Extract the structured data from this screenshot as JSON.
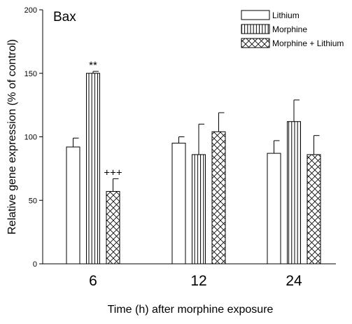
{
  "chart_data": {
    "type": "bar",
    "title": "Bax",
    "xlabel": "Time (h) after morphine exposure",
    "ylabel": "Relative gene expression (% of control)",
    "ylim": [
      0,
      200
    ],
    "yticks": [
      0,
      50,
      100,
      150,
      200
    ],
    "categories": [
      "6",
      "12",
      "24"
    ],
    "legend_position": "top-right",
    "series": [
      {
        "name": "Lithium",
        "pattern": "empty",
        "values": [
          92,
          95,
          87
        ],
        "errors": [
          7,
          5,
          10
        ]
      },
      {
        "name": "Morphine",
        "pattern": "vertical-lines",
        "values": [
          150,
          86,
          112
        ],
        "errors": [
          1.5,
          24,
          17
        ]
      },
      {
        "name": "Morphine + Lithium",
        "pattern": "cross-hatch",
        "values": [
          57,
          104,
          86
        ],
        "errors": [
          10,
          15,
          15
        ]
      }
    ],
    "annotations": [
      {
        "text": "**",
        "series": 1,
        "category": 0
      },
      {
        "text": "+++",
        "series": 2,
        "category": 0
      }
    ],
    "colors": {
      "bar_stroke": "#000000",
      "fill": "#ffffff"
    }
  }
}
